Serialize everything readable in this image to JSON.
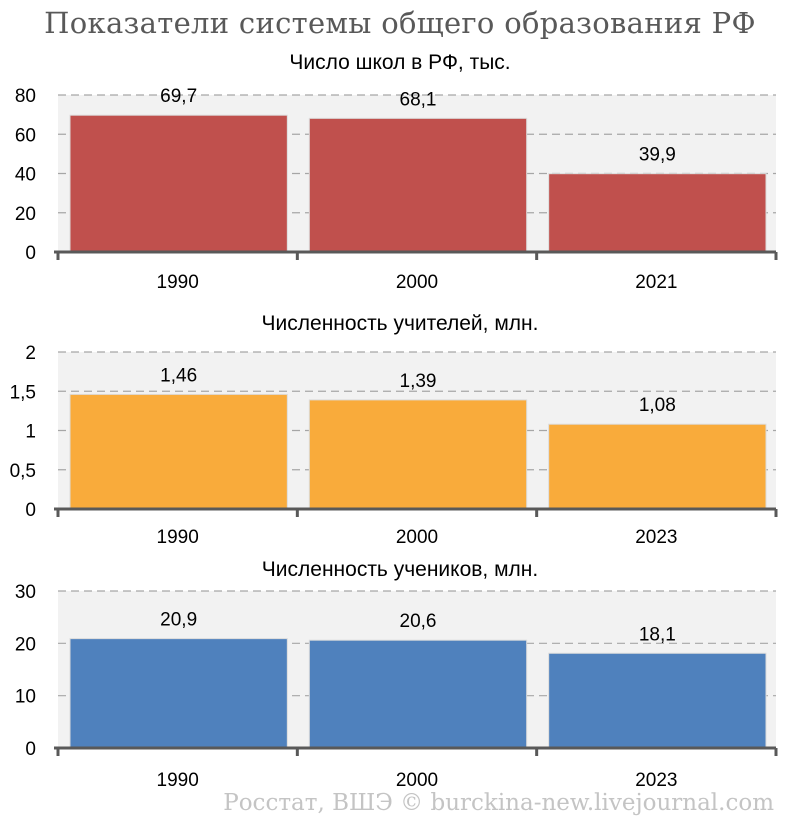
{
  "title": "Показатели системы общего образования РФ",
  "source": "Росстат, ВШЭ © burckina-new.livejournal.com",
  "colors": {
    "plot_bg": "#f2f2f2",
    "grid": "#a6a6a6",
    "axis": "#595959"
  },
  "chart_data": [
    {
      "type": "bar",
      "title": "Число школ в РФ, тыс.",
      "categories": [
        "1990",
        "2000",
        "2021"
      ],
      "values": [
        69.7,
        68.1,
        39.9
      ],
      "value_labels": [
        "69,7",
        "68,1",
        "39,9"
      ],
      "ylim": [
        0,
        80
      ],
      "yticks": [
        0,
        20,
        40,
        60,
        80
      ],
      "ytick_labels": [
        "0",
        "20",
        "40",
        "60",
        "80"
      ],
      "color": "#c0504d",
      "grid": true,
      "xlabel": "",
      "ylabel": ""
    },
    {
      "type": "bar",
      "title": "Численность учителей, млн.",
      "categories": [
        "1990",
        "2000",
        "2023"
      ],
      "values": [
        1.46,
        1.39,
        1.08
      ],
      "value_labels": [
        "1,46",
        "1,39",
        "1,08"
      ],
      "ylim": [
        0,
        2
      ],
      "yticks": [
        0,
        0.5,
        1,
        1.5,
        2
      ],
      "ytick_labels": [
        "0",
        "0,5",
        "1",
        "1,5",
        "2"
      ],
      "color": "#f9ab3b",
      "grid": true,
      "xlabel": "",
      "ylabel": ""
    },
    {
      "type": "bar",
      "title": "Численность учеников, млн.",
      "categories": [
        "1990",
        "2000",
        "2023"
      ],
      "values": [
        20.9,
        20.6,
        18.1
      ],
      "value_labels": [
        "20,9",
        "20,6",
        "18,1"
      ],
      "ylim": [
        0,
        30
      ],
      "yticks": [
        0,
        10,
        20,
        30
      ],
      "ytick_labels": [
        "0",
        "10",
        "20",
        "30"
      ],
      "color": "#4f81bd",
      "grid": true,
      "xlabel": "",
      "ylabel": ""
    }
  ]
}
